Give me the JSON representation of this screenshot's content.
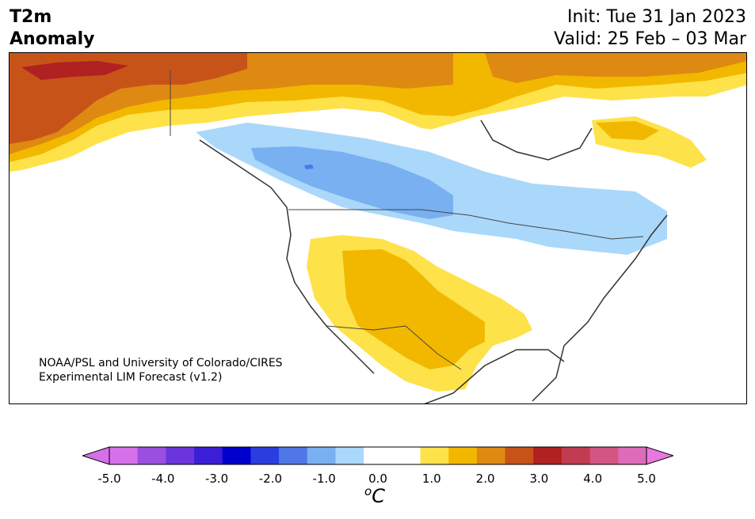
{
  "header": {
    "title_line1": "T2m",
    "title_line2": "Anomaly",
    "init": "Init: Tue 31 Jan 2023",
    "valid": "Valid: 25 Feb – 03 Mar"
  },
  "credit": {
    "line1": "NOAA/PSL and University of Colorado/CIRES",
    "line2": "Experimental LIM Forecast (v1.2)"
  },
  "colorbar": {
    "unit_base": "C",
    "unit_sup": "o",
    "ticks": [
      "-5.0",
      "-4.0",
      "-3.0",
      "-2.0",
      "-1.0",
      "0.0",
      "1.0",
      "2.0",
      "3.0",
      "4.0",
      "5.0"
    ],
    "colors": [
      "#d670e8",
      "#9a4fe0",
      "#6a35dc",
      "#3a1fd6",
      "#0000cd",
      "#2a3ee0",
      "#4f78e6",
      "#79b0f2",
      "#aad8fa",
      "#ffffff",
      "#ffffff",
      "#fde24a",
      "#f2b800",
      "#de8a12",
      "#c85318",
      "#b02121",
      "#c03c52",
      "#d25582",
      "#de6aba"
    ],
    "under_color": "#d670e8",
    "over_color": "#e878e0"
  },
  "map": {
    "anomaly_colors": {
      "cold_1": "#aad8fa",
      "cold_2": "#79b0f2",
      "cold_3": "#4f78e6",
      "warm_1": "#fde24a",
      "warm_2": "#f2b800",
      "warm_3": "#de8a12",
      "warm_4": "#c85318",
      "warm_5": "#b02121"
    }
  }
}
